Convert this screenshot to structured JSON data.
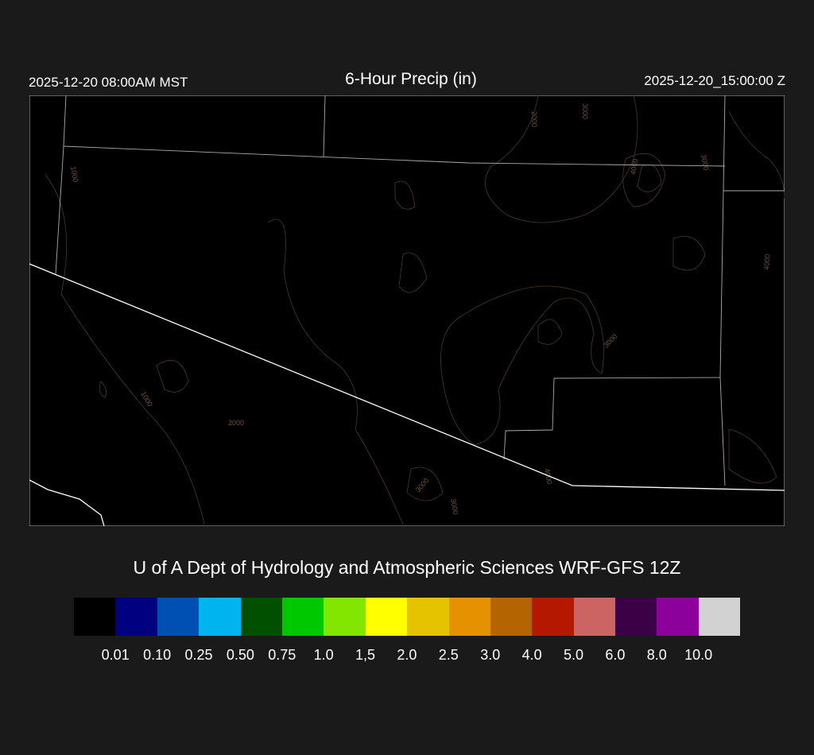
{
  "header": {
    "valid_local": "2025-12-20 08:00AM MST",
    "title": "6-Hour Precip (in)",
    "valid_utc": "2025-12-20_15:00:00 Z"
  },
  "credit": "U of A Dept of Hydrology and Atmospheric Sciences WRF-GFS 12Z",
  "colorbar": {
    "colors": [
      "#000000",
      "#000080",
      "#0050b4",
      "#00b4f0",
      "#005000",
      "#00c800",
      "#82e600",
      "#ffff00",
      "#e6c300",
      "#e69100",
      "#b46400",
      "#b41900",
      "#cd6464",
      "#3c0046",
      "#8c009b",
      "#d2d2d2"
    ],
    "labels": [
      "0.01",
      "0.10",
      "0.25",
      "0.50",
      "0.75",
      "1.0",
      "1,5",
      "2.0",
      "2.5",
      "3.0",
      "4.0",
      "5.0",
      "6.0",
      "8.0",
      "10.0"
    ]
  },
  "map": {
    "background": "#000000",
    "contour_color": "#4a3826",
    "contour_labels": [
      "2000",
      "3000",
      "4000",
      "3000",
      "1000",
      "4000",
      "3000",
      "1000",
      "2000",
      "3000",
      "3000",
      "4000"
    ]
  }
}
